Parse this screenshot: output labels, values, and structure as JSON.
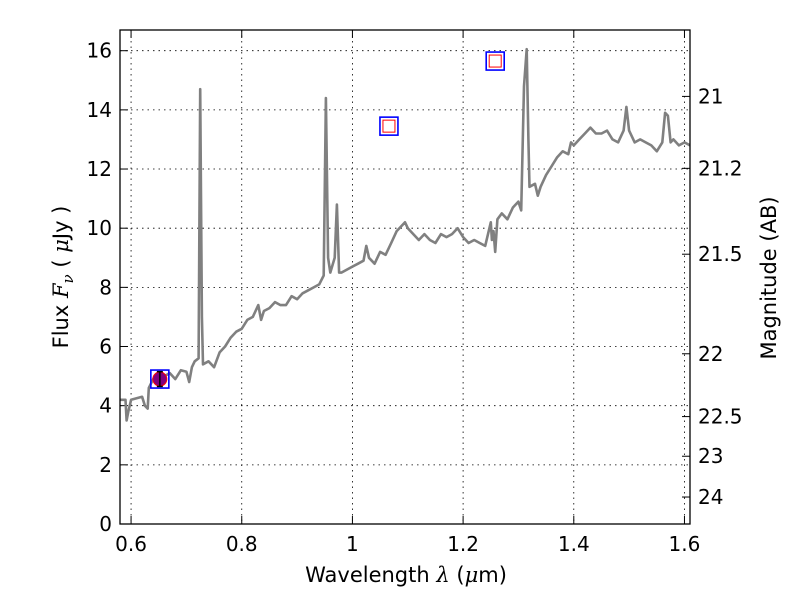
{
  "chart_data": {
    "type": "line",
    "xlabel": {
      "prefix": "Wavelength",
      "symbol": "λ",
      "units_open": "(",
      "units_mu": "μ",
      "units_rest": "m)"
    },
    "ylabel": {
      "prefix": "Flux",
      "symbol": "F",
      "subscript": "ν",
      "units_open": "(",
      "units_mu": "μ",
      "units_rest": "Jy )"
    },
    "y2label": "Magnitude (AB)",
    "xlim": [
      0.58,
      1.61
    ],
    "ylim": [
      0,
      16.7
    ],
    "grid": true,
    "x_ticks": [
      {
        "value": 0.6,
        "label": "0.6"
      },
      {
        "value": 0.8,
        "label": "0.8"
      },
      {
        "value": 1.0,
        "label": "1"
      },
      {
        "value": 1.2,
        "label": "1.2"
      },
      {
        "value": 1.4,
        "label": "1.4"
      },
      {
        "value": 1.6,
        "label": "1.6"
      }
    ],
    "y_ticks": [
      {
        "value": 0,
        "label": "0"
      },
      {
        "value": 2,
        "label": "2"
      },
      {
        "value": 4,
        "label": "4"
      },
      {
        "value": 6,
        "label": "6"
      },
      {
        "value": 8,
        "label": "8"
      },
      {
        "value": 10,
        "label": "10"
      },
      {
        "value": 12,
        "label": "12"
      },
      {
        "value": 14,
        "label": "14"
      },
      {
        "value": 16,
        "label": "16"
      }
    ],
    "mag_ticks": [
      {
        "mag": 21,
        "label": "21"
      },
      {
        "mag": 21.2,
        "label": "21.2"
      },
      {
        "mag": 21.5,
        "label": "21.5"
      },
      {
        "mag": 22,
        "label": "22"
      },
      {
        "mag": 22.5,
        "label": "22.5"
      },
      {
        "mag": 23,
        "label": "23"
      },
      {
        "mag": 24,
        "label": "24"
      }
    ],
    "series": [
      {
        "color": "#808080",
        "points": [
          [
            0.58,
            4.2
          ],
          [
            0.59,
            4.2
          ],
          [
            0.592,
            3.5
          ],
          [
            0.595,
            3.8
          ],
          [
            0.6,
            4.2
          ],
          [
            0.61,
            4.25
          ],
          [
            0.62,
            4.3
          ],
          [
            0.625,
            4.0
          ],
          [
            0.63,
            3.9
          ],
          [
            0.632,
            4.6
          ],
          [
            0.64,
            4.9
          ],
          [
            0.65,
            4.95
          ],
          [
            0.66,
            5.0
          ],
          [
            0.67,
            5.1
          ],
          [
            0.68,
            4.9
          ],
          [
            0.69,
            5.2
          ],
          [
            0.7,
            5.15
          ],
          [
            0.705,
            4.8
          ],
          [
            0.71,
            5.3
          ],
          [
            0.715,
            5.5
          ],
          [
            0.722,
            5.6
          ],
          [
            0.725,
            14.7
          ],
          [
            0.728,
            7.0
          ],
          [
            0.73,
            5.4
          ],
          [
            0.74,
            5.5
          ],
          [
            0.75,
            5.3
          ],
          [
            0.76,
            5.8
          ],
          [
            0.77,
            6.0
          ],
          [
            0.78,
            6.3
          ],
          [
            0.79,
            6.5
          ],
          [
            0.8,
            6.6
          ],
          [
            0.81,
            6.9
          ],
          [
            0.82,
            7.0
          ],
          [
            0.83,
            7.4
          ],
          [
            0.835,
            6.9
          ],
          [
            0.84,
            7.2
          ],
          [
            0.85,
            7.3
          ],
          [
            0.86,
            7.5
          ],
          [
            0.87,
            7.4
          ],
          [
            0.88,
            7.4
          ],
          [
            0.89,
            7.7
          ],
          [
            0.9,
            7.6
          ],
          [
            0.91,
            7.8
          ],
          [
            0.92,
            7.9
          ],
          [
            0.93,
            8.0
          ],
          [
            0.94,
            8.1
          ],
          [
            0.948,
            8.4
          ],
          [
            0.952,
            14.4
          ],
          [
            0.956,
            9.0
          ],
          [
            0.96,
            8.5
          ],
          [
            0.968,
            9.0
          ],
          [
            0.972,
            10.8
          ],
          [
            0.976,
            8.5
          ],
          [
            0.98,
            8.5
          ],
          [
            0.99,
            8.6
          ],
          [
            1.0,
            8.7
          ],
          [
            1.01,
            8.8
          ],
          [
            1.02,
            8.9
          ],
          [
            1.025,
            9.4
          ],
          [
            1.03,
            9.0
          ],
          [
            1.04,
            8.8
          ],
          [
            1.05,
            9.2
          ],
          [
            1.06,
            9.1
          ],
          [
            1.07,
            9.5
          ],
          [
            1.08,
            9.9
          ],
          [
            1.09,
            10.1
          ],
          [
            1.095,
            10.2
          ],
          [
            1.1,
            10.0
          ],
          [
            1.11,
            9.8
          ],
          [
            1.12,
            9.6
          ],
          [
            1.13,
            9.8
          ],
          [
            1.14,
            9.6
          ],
          [
            1.15,
            9.5
          ],
          [
            1.16,
            9.8
          ],
          [
            1.17,
            9.7
          ],
          [
            1.18,
            9.8
          ],
          [
            1.19,
            10.0
          ],
          [
            1.2,
            9.7
          ],
          [
            1.21,
            9.5
          ],
          [
            1.22,
            9.6
          ],
          [
            1.23,
            9.5
          ],
          [
            1.24,
            9.4
          ],
          [
            1.25,
            10.2
          ],
          [
            1.252,
            9.6
          ],
          [
            1.255,
            9.9
          ],
          [
            1.258,
            9.2
          ],
          [
            1.262,
            10.3
          ],
          [
            1.27,
            10.5
          ],
          [
            1.28,
            10.3
          ],
          [
            1.29,
            10.7
          ],
          [
            1.3,
            10.9
          ],
          [
            1.305,
            10.6
          ],
          [
            1.31,
            14.8
          ],
          [
            1.315,
            16.05
          ],
          [
            1.318,
            13.0
          ],
          [
            1.32,
            11.4
          ],
          [
            1.33,
            11.5
          ],
          [
            1.335,
            11.1
          ],
          [
            1.34,
            11.4
          ],
          [
            1.35,
            11.8
          ],
          [
            1.36,
            12.1
          ],
          [
            1.37,
            12.4
          ],
          [
            1.38,
            12.6
          ],
          [
            1.39,
            12.5
          ],
          [
            1.395,
            12.9
          ],
          [
            1.4,
            12.8
          ],
          [
            1.41,
            13.0
          ],
          [
            1.42,
            13.2
          ],
          [
            1.43,
            13.4
          ],
          [
            1.44,
            13.2
          ],
          [
            1.45,
            13.2
          ],
          [
            1.46,
            13.3
          ],
          [
            1.47,
            13.0
          ],
          [
            1.48,
            12.9
          ],
          [
            1.49,
            13.3
          ],
          [
            1.495,
            14.1
          ],
          [
            1.5,
            13.3
          ],
          [
            1.51,
            12.9
          ],
          [
            1.52,
            13.0
          ],
          [
            1.53,
            12.9
          ],
          [
            1.54,
            12.8
          ],
          [
            1.55,
            12.6
          ],
          [
            1.56,
            12.9
          ],
          [
            1.565,
            13.9
          ],
          [
            1.57,
            13.8
          ],
          [
            1.575,
            12.9
          ],
          [
            1.58,
            13.0
          ],
          [
            1.59,
            12.8
          ],
          [
            1.6,
            12.9
          ],
          [
            1.61,
            12.8
          ]
        ]
      }
    ],
    "photometry": [
      {
        "x": 0.652,
        "y": 4.9,
        "filled": true,
        "yerr": 0.25
      },
      {
        "x": 1.066,
        "y": 13.45,
        "filled": false
      },
      {
        "x": 1.258,
        "y": 15.65,
        "filled": false
      }
    ],
    "colors": {
      "spectrum": "#808080",
      "box": "#0000ff",
      "marker_outline": "#ff0000",
      "marker_fill": "#800080"
    }
  }
}
